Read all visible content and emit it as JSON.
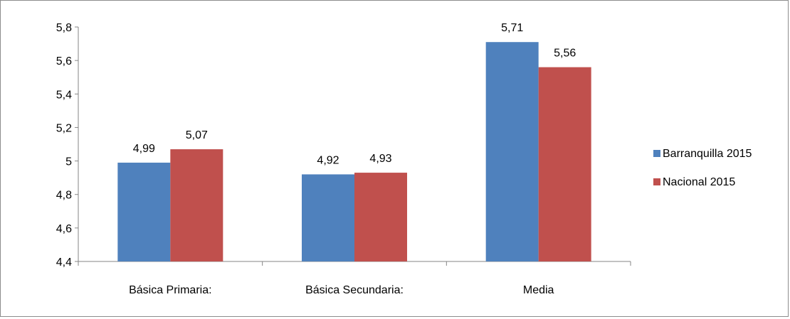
{
  "chart_data": {
    "type": "bar",
    "categories": [
      "Básica  Primaria:",
      "Básica Secundaria:",
      "Media"
    ],
    "series": [
      {
        "name": "Barranquilla 2015",
        "values": [
          4.99,
          4.92,
          5.71
        ],
        "labels": [
          "4,99",
          "4,92",
          "5,71"
        ],
        "color": "#4f81bd"
      },
      {
        "name": "Nacional 2015",
        "values": [
          5.07,
          4.93,
          5.56
        ],
        "labels": [
          "5,07",
          "4,93",
          "5,56"
        ],
        "color": "#c0504d"
      }
    ],
    "ylim": [
      4.4,
      5.8
    ],
    "yticks": [
      4.4,
      4.6,
      4.8,
      5.0,
      5.2,
      5.4,
      5.6,
      5.8
    ],
    "ytick_labels": [
      "4,4",
      "4,6",
      "4,8",
      "5",
      "5,2",
      "5,4",
      "5,6",
      "5,8"
    ],
    "title": "",
    "xlabel": "",
    "ylabel": "",
    "grid": false,
    "legend_position": "right"
  }
}
